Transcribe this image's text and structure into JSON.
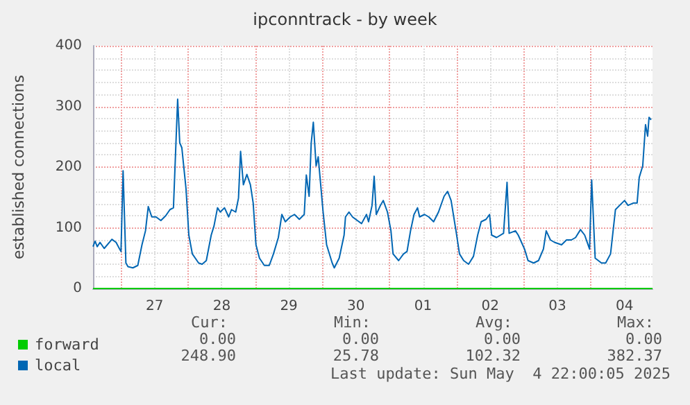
{
  "chart_data": {
    "type": "line",
    "title": "ipconntrack - by week",
    "ylabel": "established connections",
    "xlim": [
      "2025-04-26T14:00",
      "2025-05-04T22:00"
    ],
    "xticks": [
      {
        "value": "2025-04-27T00:00",
        "label": null
      },
      {
        "value": "2025-04-27T12:00",
        "label": "27"
      },
      {
        "value": "2025-04-28T00:00",
        "label": null
      },
      {
        "value": "2025-04-28T12:00",
        "label": "28"
      },
      {
        "value": "2025-04-29T00:00",
        "label": null
      },
      {
        "value": "2025-04-29T12:00",
        "label": "29"
      },
      {
        "value": "2025-04-30T00:00",
        "label": null
      },
      {
        "value": "2025-04-30T12:00",
        "label": "30"
      },
      {
        "value": "2025-05-01T00:00",
        "label": null
      },
      {
        "value": "2025-05-01T12:00",
        "label": "01"
      },
      {
        "value": "2025-05-02T00:00",
        "label": null
      },
      {
        "value": "2025-05-02T12:00",
        "label": "02"
      },
      {
        "value": "2025-05-03T00:00",
        "label": null
      },
      {
        "value": "2025-05-03T12:00",
        "label": "03"
      },
      {
        "value": "2025-05-04T00:00",
        "label": null
      },
      {
        "value": "2025-05-04T12:00",
        "label": "04"
      }
    ],
    "ylim": [
      0,
      400
    ],
    "yticks": [
      0,
      100,
      200,
      300,
      400
    ],
    "grid": true,
    "legend": "bottom left",
    "marker": "none",
    "line_style": "solid",
    "series": [
      {
        "name": "forward",
        "color": "#00cc00",
        "x": [
          "2025-04-26T14:00",
          "2025-05-04T22:00"
        ],
        "values": [
          0,
          0
        ]
      },
      {
        "name": "local",
        "color": "#0066b3",
        "x": [
          "2025-04-26T14:00",
          "2025-04-26T14:45",
          "2025-04-26T15:30",
          "2025-04-26T16:30",
          "2025-04-26T18:00",
          "2025-04-26T20:45",
          "2025-04-26T22:15",
          "2025-04-26T23:30",
          "2025-04-27T00:00",
          "2025-04-27T00:45",
          "2025-04-27T01:45",
          "2025-04-27T02:30",
          "2025-04-27T04:15",
          "2025-04-27T06:00",
          "2025-04-27T07:30",
          "2025-04-27T08:45",
          "2025-04-27T09:45",
          "2025-04-27T11:00",
          "2025-04-27T12:30",
          "2025-04-27T14:15",
          "2025-04-27T16:00",
          "2025-04-27T17:30",
          "2025-04-27T18:45",
          "2025-04-27T20:15",
          "2025-04-27T21:00",
          "2025-04-27T21:45",
          "2025-04-27T23:15",
          "2025-04-28T00:15",
          "2025-04-28T01:30",
          "2025-04-28T03:45",
          "2025-04-28T05:00",
          "2025-04-28T06:30",
          "2025-04-28T08:15",
          "2025-04-28T09:15",
          "2025-04-28T10:30",
          "2025-04-28T11:30",
          "2025-04-28T13:00",
          "2025-04-28T14:30",
          "2025-04-28T15:30",
          "2025-04-28T17:00",
          "2025-04-28T18:00",
          "2025-04-28T18:45",
          "2025-04-28T19:45",
          "2025-04-28T21:00",
          "2025-04-28T22:15",
          "2025-04-28T23:15",
          "2025-04-29T00:15",
          "2025-04-29T01:30",
          "2025-04-29T03:15",
          "2025-04-29T05:00",
          "2025-04-29T06:30",
          "2025-04-29T08:15",
          "2025-04-29T09:30",
          "2025-04-29T10:45",
          "2025-04-29T12:30",
          "2025-04-29T14:00",
          "2025-04-29T15:45",
          "2025-04-29T17:30",
          "2025-04-29T18:15",
          "2025-04-29T19:15",
          "2025-04-29T20:00",
          "2025-04-29T20:45",
          "2025-04-29T21:45",
          "2025-04-29T22:30",
          "2025-04-30T00:15",
          "2025-04-30T01:30",
          "2025-04-30T03:30",
          "2025-04-30T04:15",
          "2025-04-30T06:00",
          "2025-04-30T07:45",
          "2025-04-30T08:15",
          "2025-04-30T09:30",
          "2025-04-30T10:45",
          "2025-04-30T12:30",
          "2025-04-30T14:00",
          "2025-04-30T15:45",
          "2025-04-30T16:30",
          "2025-04-30T17:45",
          "2025-04-30T18:30",
          "2025-04-30T19:15",
          "2025-04-30T20:45",
          "2025-04-30T21:45",
          "2025-04-30T23:15",
          "2025-05-01T00:30",
          "2025-05-01T01:15",
          "2025-05-01T03:15",
          "2025-05-01T05:00",
          "2025-05-01T06:15",
          "2025-05-01T07:30",
          "2025-05-01T08:45",
          "2025-05-01T10:00",
          "2025-05-01T10:45",
          "2025-05-01T12:30",
          "2025-05-01T14:00",
          "2025-05-01T15:45",
          "2025-05-01T17:30",
          "2025-05-01T19:30",
          "2025-05-01T20:45",
          "2025-05-01T22:00",
          "2025-05-01T23:45",
          "2025-05-02T01:00",
          "2025-05-02T02:30",
          "2025-05-02T04:15",
          "2025-05-02T06:00",
          "2025-05-02T07:30",
          "2025-05-02T08:45",
          "2025-05-02T10:30",
          "2025-05-02T11:45",
          "2025-05-02T12:30",
          "2025-05-02T14:15",
          "2025-05-02T16:45",
          "2025-05-02T18:00",
          "2025-05-02T18:45",
          "2025-05-02T21:00",
          "2025-05-02T22:00",
          "2025-05-03T00:15",
          "2025-05-03T01:30",
          "2025-05-03T03:30",
          "2025-05-03T05:15",
          "2025-05-03T07:00",
          "2025-05-03T08:00",
          "2025-05-03T09:30",
          "2025-05-03T11:00",
          "2025-05-03T13:30",
          "2025-05-03T15:15",
          "2025-05-03T17:00",
          "2025-05-03T18:30",
          "2025-05-03T20:15",
          "2025-05-03T21:45",
          "2025-05-03T23:30",
          "2025-05-04T00:15",
          "2025-05-04T01:30",
          "2025-05-04T03:45",
          "2025-05-04T05:15",
          "2025-05-04T07:00",
          "2025-05-04T08:45",
          "2025-05-04T10:15",
          "2025-05-04T12:00",
          "2025-05-04T13:15",
          "2025-05-04T15:15",
          "2025-05-04T16:30",
          "2025-05-04T17:15",
          "2025-05-04T18:30",
          "2025-05-04T19:30",
          "2025-05-04T20:15",
          "2025-05-04T20:45",
          "2025-05-04T21:30"
        ],
        "values": [
          69,
          78,
          69,
          76,
          66,
          81,
          76,
          65,
          61,
          194,
          42,
          36,
          34,
          38,
          72,
          95,
          135,
          118,
          118,
          112,
          120,
          130,
          133,
          312,
          240,
          232,
          164,
          88,
          57,
          42,
          40,
          46,
          88,
          103,
          133,
          126,
          133,
          118,
          130,
          126,
          149,
          226,
          171,
          188,
          171,
          141,
          72,
          50,
          38,
          38,
          57,
          84,
          122,
          110,
          118,
          122,
          114,
          122,
          187,
          152,
          240,
          274,
          202,
          217,
          126,
          72,
          42,
          34,
          50,
          88,
          118,
          126,
          118,
          112,
          107,
          122,
          110,
          137,
          185,
          122,
          137,
          145,
          126,
          95,
          57,
          46,
          57,
          61,
          95,
          122,
          133,
          118,
          122,
          118,
          110,
          126,
          152,
          160,
          145,
          95,
          57,
          46,
          40,
          53,
          88,
          110,
          114,
          122,
          88,
          84,
          91,
          175,
          91,
          95,
          88,
          65,
          46,
          42,
          46,
          65,
          95,
          80,
          76,
          72,
          80,
          80,
          84,
          97,
          88,
          65,
          179,
          50,
          42,
          42,
          57,
          130,
          137,
          145,
          137,
          141,
          141,
          183,
          202,
          270,
          251,
          282,
          278
        ]
      }
    ],
    "annotations": [
      "Cur:",
      "Min:",
      "Avg:",
      "Max:",
      "0.00",
      "0.00",
      "0.00",
      "0.00",
      "248.90",
      "25.78",
      "102.32",
      "382.37",
      "Last update: Sun May  4 22:00:05 2025"
    ]
  }
}
